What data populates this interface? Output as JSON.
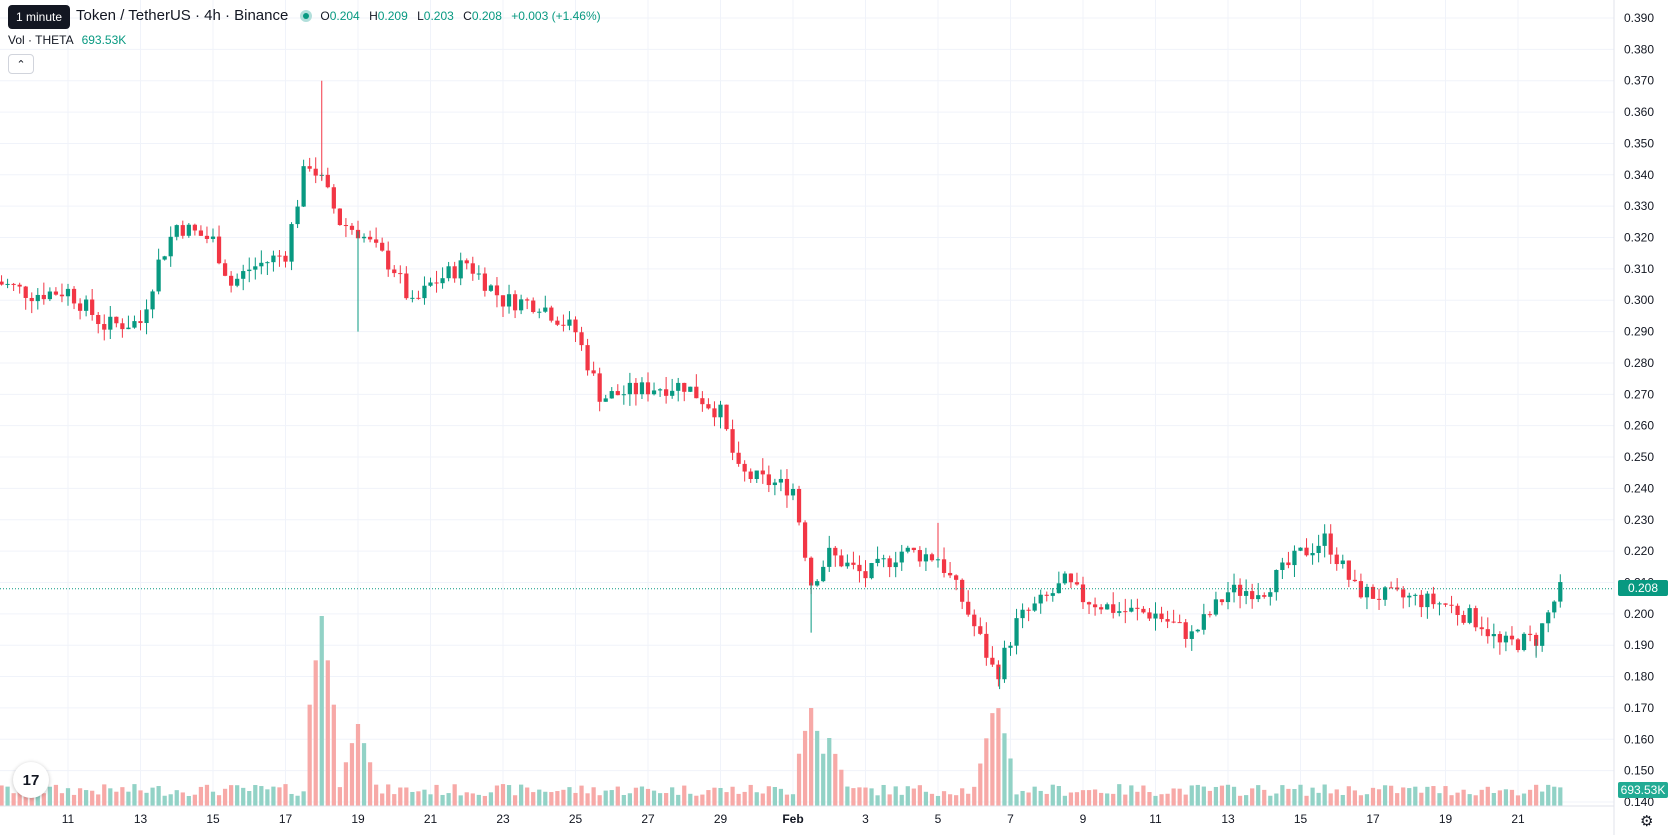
{
  "legend": {
    "title": "Token / TetherUS · 4h · Binance",
    "open_label": "O",
    "open": "0.204",
    "high_label": "H",
    "high": "0.209",
    "low_label": "L",
    "low": "0.203",
    "close_label": "C",
    "close": "0.208",
    "change": "+0.003 (+1.46%)"
  },
  "tooltip": "1 minute",
  "volume": {
    "label": "Vol · THETA",
    "value": "693.53K"
  },
  "icons": {
    "collapse": "chevron-up-icon",
    "logo": "tradingview-logo-icon",
    "settings": "gear-icon",
    "status": "status-dot-icon"
  },
  "colors": {
    "up": "#089981",
    "down": "#f23645",
    "up_volume": "#92d2c6",
    "down_volume": "#f7a9a7"
  },
  "badges": {
    "last_price": "0.208",
    "last_volume": "693.53K"
  },
  "chart_data": {
    "type": "candlestick",
    "symbol": "Token / TetherUS",
    "interval": "4h",
    "exchange": "Binance",
    "y_ticks": [
      "0.390",
      "0.380",
      "0.370",
      "0.360",
      "0.350",
      "0.340",
      "0.330",
      "0.320",
      "0.310",
      "0.300",
      "0.290",
      "0.280",
      "0.270",
      "0.260",
      "0.250",
      "0.240",
      "0.230",
      "0.220",
      "0.210",
      "0.200",
      "0.190",
      "0.180",
      "0.170",
      "0.160",
      "0.150",
      "0.140"
    ],
    "x_ticks": [
      "11",
      "13",
      "15",
      "17",
      "19",
      "21",
      "23",
      "25",
      "27",
      "29",
      "Feb",
      "3",
      "5",
      "7",
      "9",
      "11",
      "13",
      "15",
      "17",
      "19",
      "21"
    ],
    "ylim": [
      0.135,
      0.395
    ],
    "grid": true,
    "last_price": 0.208,
    "close_path": [
      {
        "x": "Jan 9",
        "y": 0.306
      },
      {
        "x": "Jan 10",
        "y": 0.302
      },
      {
        "x": "Jan 11",
        "y": 0.303
      },
      {
        "x": "Jan 12",
        "y": 0.292
      },
      {
        "x": "Jan 13",
        "y": 0.293
      },
      {
        "x": "Jan 13.5",
        "y": 0.312
      },
      {
        "x": "Jan 14",
        "y": 0.324
      },
      {
        "x": "Jan 15",
        "y": 0.319
      },
      {
        "x": "Jan 15.5",
        "y": 0.305
      },
      {
        "x": "Jan 16",
        "y": 0.31
      },
      {
        "x": "Jan 17",
        "y": 0.315
      },
      {
        "x": "Jan 17.6",
        "y": 0.345
      },
      {
        "x": "Jan 18",
        "y": 0.338
      },
      {
        "x": "Jan 18.5",
        "y": 0.325
      },
      {
        "x": "Jan 19",
        "y": 0.322
      },
      {
        "x": "Jan 20",
        "y": 0.31
      },
      {
        "x": "Jan 20.5",
        "y": 0.298
      },
      {
        "x": "Jan 21",
        "y": 0.305
      },
      {
        "x": "Jan 22",
        "y": 0.312
      },
      {
        "x": "Jan 23",
        "y": 0.3
      },
      {
        "x": "Jan 24",
        "y": 0.299
      },
      {
        "x": "Jan 25",
        "y": 0.29
      },
      {
        "x": "Jan 25.7",
        "y": 0.269
      },
      {
        "x": "Jan 27",
        "y": 0.272
      },
      {
        "x": "Jan 28",
        "y": 0.273
      },
      {
        "x": "Jan 29",
        "y": 0.264
      },
      {
        "x": "Jan 29.5",
        "y": 0.245
      },
      {
        "x": "Jan 30",
        "y": 0.243
      },
      {
        "x": "Jan 31",
        "y": 0.24
      },
      {
        "x": "Jan 31.5",
        "y": 0.21
      },
      {
        "x": "Feb 1",
        "y": 0.219
      },
      {
        "x": "Feb 2",
        "y": 0.212
      },
      {
        "x": "Feb 3",
        "y": 0.22
      },
      {
        "x": "Feb 4",
        "y": 0.218
      },
      {
        "x": "Feb 4.6",
        "y": 0.206
      },
      {
        "x": "Feb 5.2",
        "y": 0.191
      },
      {
        "x": "Feb 5.6",
        "y": 0.18
      },
      {
        "x": "Feb 6.2",
        "y": 0.198
      },
      {
        "x": "Feb 7",
        "y": 0.205
      },
      {
        "x": "Feb 7.5",
        "y": 0.21
      },
      {
        "x": "Feb 8",
        "y": 0.205
      },
      {
        "x": "Feb 9",
        "y": 0.201
      },
      {
        "x": "Feb 10",
        "y": 0.2
      },
      {
        "x": "Feb 11",
        "y": 0.193
      },
      {
        "x": "Feb 12",
        "y": 0.207
      },
      {
        "x": "Feb 13",
        "y": 0.208
      },
      {
        "x": "Feb 14",
        "y": 0.219
      },
      {
        "x": "Feb 14.7",
        "y": 0.224
      },
      {
        "x": "Feb 15.5",
        "y": 0.208
      },
      {
        "x": "Feb 16",
        "y": 0.206
      },
      {
        "x": "Feb 17",
        "y": 0.205
      },
      {
        "x": "Feb 18",
        "y": 0.203
      },
      {
        "x": "Feb 19",
        "y": 0.197
      },
      {
        "x": "Feb 19.5",
        "y": 0.19
      },
      {
        "x": "Feb 20.5",
        "y": 0.192
      },
      {
        "x": "Feb 21",
        "y": 0.204
      },
      {
        "x": "Feb 21.2",
        "y": 0.208
      }
    ],
    "spikes": [
      {
        "x": "Jan 18",
        "y": 0.37
      },
      {
        "x": "Jan 19",
        "y": 0.29
      },
      {
        "x": "Jan 31.5",
        "y": 0.194
      },
      {
        "x": "Feb 4",
        "y": 0.229
      },
      {
        "x": "Feb 5.7",
        "y": 0.176
      },
      {
        "x": "Feb 20.5",
        "y": 0.186
      }
    ],
    "volume_peaks": [
      {
        "x": "Jan 18",
        "value": 0.95
      },
      {
        "x": "Jan 19",
        "value": 0.41
      },
      {
        "x": "Jan 31.5",
        "value": 0.49
      },
      {
        "x": "Feb 1",
        "value": 0.34
      },
      {
        "x": "Feb 5.6",
        "value": 0.54
      }
    ]
  }
}
